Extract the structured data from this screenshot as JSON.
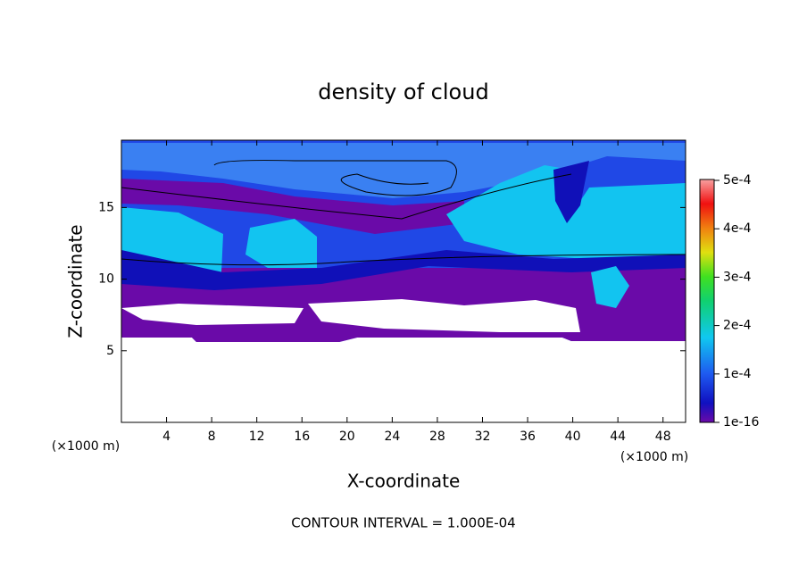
{
  "chart_data": {
    "type": "contour",
    "title": "density of cloud",
    "x_label": "X-coordinate",
    "y_label": "Z-coordinate",
    "x_unit": "(×1000 m)",
    "y_unit": "(×1000 m)",
    "annotation": "CONTOUR INTERVAL = 1.000E-04",
    "xlim": [
      0,
      50
    ],
    "xticks": [
      4,
      8,
      12,
      16,
      20,
      24,
      28,
      32,
      36,
      40,
      44,
      48
    ],
    "ylim": [
      0,
      19.7
    ],
    "yticks": [
      5,
      10,
      15
    ],
    "colorbar_lim": [
      1e-16,
      0.0005
    ],
    "colorbar_ticks": [
      {
        "value": 1e-16,
        "label": "1e-16"
      },
      {
        "value": 0.0001,
        "label": "1e-4"
      },
      {
        "value": 0.0002,
        "label": "2e-4"
      },
      {
        "value": 0.0003,
        "label": "3e-4"
      },
      {
        "value": 0.0004,
        "label": "4e-4"
      },
      {
        "value": 0.0005,
        "label": "5e-4"
      }
    ]
  }
}
